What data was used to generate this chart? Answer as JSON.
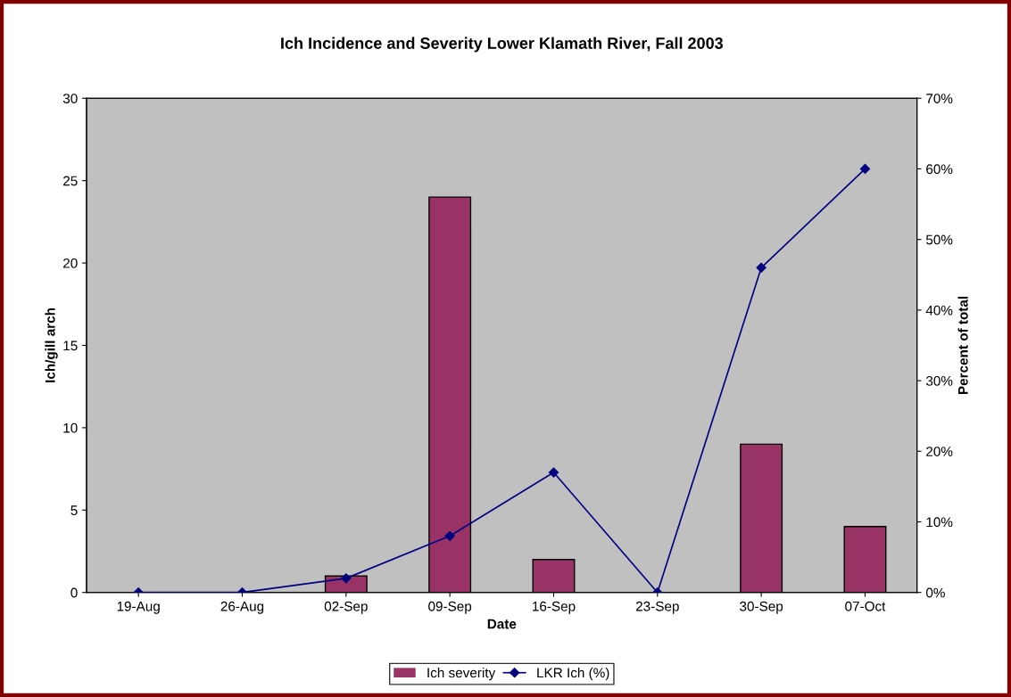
{
  "chart_data": {
    "type": "bar",
    "title": "Ich Incidence and Severity Lower Klamath River, Fall 2003",
    "xlabel": "Date",
    "ylabel": "Ich/gill arch",
    "y2label": "Percent of total",
    "categories": [
      "19-Aug",
      "26-Aug",
      "02-Sep",
      "09-Sep",
      "16-Sep",
      "23-Sep",
      "30-Sep",
      "07-Oct"
    ],
    "series": [
      {
        "name": "Ich severity",
        "color": "#993366",
        "values": [
          0,
          0,
          1,
          24,
          2,
          0,
          9,
          4
        ]
      },
      {
        "name": "LKR Ich (%)",
        "type": "line",
        "axis": "y2",
        "color": "#000080",
        "marker": "diamond",
        "values": [
          0,
          0,
          2,
          8,
          17,
          0,
          46,
          60
        ]
      }
    ],
    "ylim": [
      0,
      30
    ],
    "yticks": [
      0,
      5,
      10,
      15,
      20,
      25,
      30
    ],
    "y2lim": [
      0,
      70
    ],
    "y2ticks": [
      {
        "value": 0,
        "label": "0%"
      },
      {
        "value": 10,
        "label": "10%"
      },
      {
        "value": 20,
        "label": "20%"
      },
      {
        "value": 30,
        "label": "30%"
      },
      {
        "value": 40,
        "label": "40%"
      },
      {
        "value": 50,
        "label": "50%"
      },
      {
        "value": 60,
        "label": "60%"
      },
      {
        "value": 70,
        "label": "70%"
      }
    ],
    "grid": false,
    "legend": "bottom"
  }
}
